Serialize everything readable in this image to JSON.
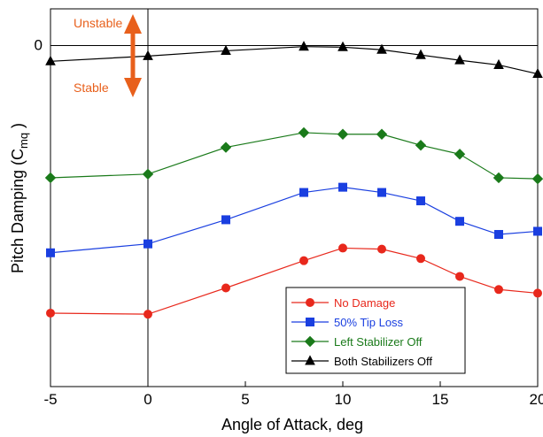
{
  "chart_data": {
    "type": "line",
    "xlabel": "Angle of Attack, deg",
    "ylabel": "Pitch Damping (C",
    "ylabel_sub": "mq",
    "ylabel_close": " )",
    "xlim": [
      -5,
      20
    ],
    "ylim": [
      -6.5,
      0.7
    ],
    "xticks": [
      "-5",
      "0",
      "5",
      "10",
      "15",
      "20"
    ],
    "yticks": [
      {
        "value": 0,
        "label": "0"
      }
    ],
    "grid": false,
    "legend_position": "bottom-right",
    "annotations": {
      "unstable": "Unstable",
      "stable": "Stable",
      "arrow_color": "#e8601c"
    },
    "series": [
      {
        "name": "No Damage",
        "color": "#e8281c",
        "marker": "circle",
        "x": [
          -5,
          0,
          4,
          8,
          10,
          12,
          14,
          16,
          18,
          20
        ],
        "y": [
          -5.1,
          -5.12,
          -4.62,
          -4.1,
          -3.86,
          -3.88,
          -4.06,
          -4.4,
          -4.65,
          -4.72
        ]
      },
      {
        "name": "50% Tip Loss",
        "color": "#1a3fe0",
        "marker": "square",
        "x": [
          -5,
          0,
          4,
          8,
          10,
          12,
          14,
          16,
          18,
          20
        ],
        "y": [
          -3.95,
          -3.78,
          -3.32,
          -2.8,
          -2.7,
          -2.8,
          -2.96,
          -3.35,
          -3.6,
          -3.54
        ]
      },
      {
        "name": "Left Stabilizer Off",
        "color": "#1a7a1a",
        "marker": "diamond",
        "x": [
          -5,
          0,
          4,
          8,
          10,
          12,
          14,
          16,
          18,
          20
        ],
        "y": [
          -2.52,
          -2.45,
          -1.94,
          -1.66,
          -1.69,
          -1.69,
          -1.9,
          -2.07,
          -2.52,
          -2.54
        ]
      },
      {
        "name": "Both Stabilizers Off",
        "color": "#000000",
        "marker": "triangle",
        "x": [
          -5,
          0,
          4,
          8,
          10,
          12,
          14,
          16,
          18,
          20
        ],
        "y": [
          -0.3,
          -0.2,
          -0.1,
          -0.02,
          -0.03,
          -0.08,
          -0.18,
          -0.28,
          -0.37,
          -0.54
        ]
      }
    ]
  }
}
